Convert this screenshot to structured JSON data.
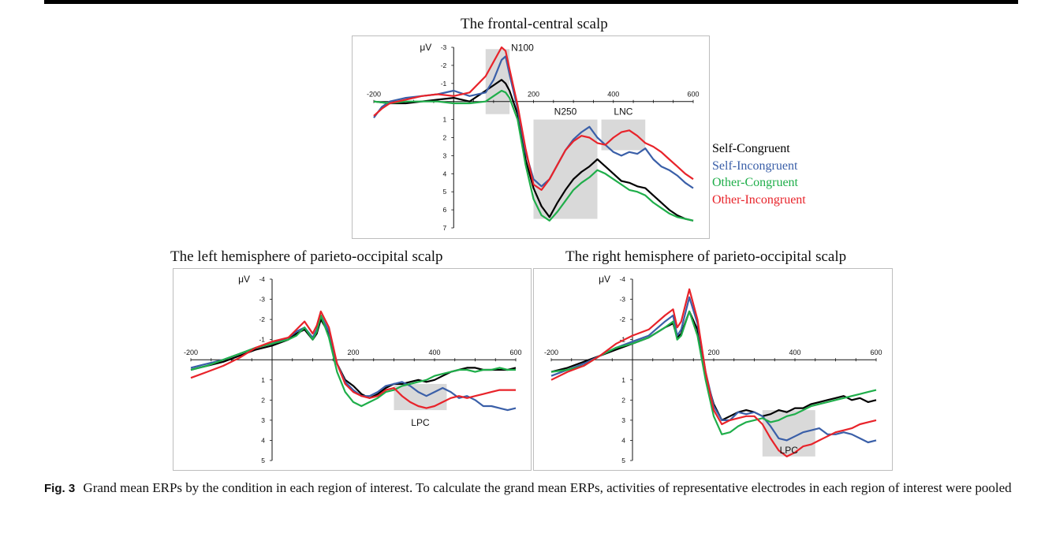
{
  "figure_label": "Fig. 3",
  "caption": "Grand mean ERPs by the condition in each region of interest. To calculate the grand mean ERPs, activities of representative electrodes in each region of interest were pooled",
  "legend": [
    {
      "label": "Self-Congruent",
      "color": "#000000"
    },
    {
      "label": "Self-Incongruent",
      "color": "#3a5fa8"
    },
    {
      "label": "Other-Congruent",
      "color": "#1fae4a"
    },
    {
      "label": "Other-Incongruent",
      "color": "#e8232a"
    }
  ],
  "chart_data": [
    {
      "type": "line",
      "title": "The frontal-central scalp",
      "ylabel": "μV",
      "xlabel": "",
      "x_range": [
        -200,
        600
      ],
      "ylim": [
        -3,
        7
      ],
      "y_inverted": true,
      "x_ticks": [
        -200,
        200,
        400,
        600
      ],
      "y_ticks": [
        -3,
        -2,
        -1,
        1,
        2,
        3,
        4,
        5,
        6,
        7
      ],
      "windows": [
        {
          "label": "N100",
          "x0": 80,
          "x1": 140,
          "y_top": -2.9,
          "y_bottom": 0.7
        },
        {
          "label": "N250",
          "x0": 200,
          "x1": 360,
          "y_top": 1.0,
          "y_bottom": 6.5
        },
        {
          "label": "LNC",
          "x0": 370,
          "x1": 480,
          "y_top": 1.0,
          "y_bottom": 2.7
        }
      ],
      "series": [
        {
          "name": "Self-Congruent",
          "color": "#000000",
          "x": [
            -200,
            -160,
            -120,
            -80,
            -40,
            0,
            40,
            80,
            100,
            120,
            130,
            140,
            160,
            180,
            200,
            220,
            240,
            260,
            280,
            300,
            320,
            340,
            360,
            380,
            400,
            420,
            440,
            460,
            480,
            500,
            520,
            540,
            560,
            580,
            600
          ],
          "y": [
            0.0,
            0.1,
            0.1,
            0.0,
            -0.1,
            -0.2,
            0.0,
            -0.6,
            -0.9,
            -1.2,
            -1.0,
            -0.6,
            0.7,
            3.2,
            4.8,
            5.8,
            6.4,
            5.6,
            4.9,
            4.3,
            3.9,
            3.6,
            3.2,
            3.6,
            4.0,
            4.4,
            4.5,
            4.7,
            4.8,
            5.2,
            5.6,
            6.0,
            6.3,
            6.5,
            6.6
          ]
        },
        {
          "name": "Self-Incongruent",
          "color": "#3a5fa8",
          "x": [
            -200,
            -180,
            -160,
            -120,
            -80,
            -40,
            0,
            40,
            80,
            100,
            120,
            130,
            140,
            160,
            180,
            200,
            220,
            240,
            260,
            280,
            300,
            320,
            340,
            360,
            380,
            400,
            420,
            440,
            460,
            480,
            500,
            520,
            540,
            560,
            580,
            600
          ],
          "y": [
            0.9,
            0.3,
            0.0,
            -0.2,
            -0.3,
            -0.4,
            -0.6,
            -0.3,
            -0.5,
            -1.2,
            -2.3,
            -2.5,
            -1.5,
            0.4,
            2.8,
            4.3,
            4.7,
            4.3,
            3.5,
            2.7,
            2.1,
            1.7,
            1.4,
            2.0,
            2.4,
            2.8,
            3.0,
            2.8,
            2.9,
            2.6,
            3.2,
            3.6,
            3.8,
            4.1,
            4.5,
            4.8
          ]
        },
        {
          "name": "Other-Congruent",
          "color": "#1fae4a",
          "x": [
            -200,
            -160,
            -120,
            -80,
            -40,
            0,
            40,
            80,
            100,
            120,
            130,
            140,
            160,
            180,
            200,
            220,
            240,
            260,
            280,
            300,
            320,
            340,
            360,
            380,
            400,
            420,
            440,
            460,
            480,
            500,
            520,
            540,
            560,
            580,
            600
          ],
          "y": [
            0.0,
            0.1,
            0.0,
            0.0,
            0.0,
            0.1,
            0.1,
            0.0,
            -0.3,
            -0.6,
            -0.5,
            -0.2,
            1.0,
            3.5,
            5.4,
            6.3,
            6.6,
            6.1,
            5.5,
            4.9,
            4.5,
            4.2,
            3.8,
            4.0,
            4.3,
            4.6,
            4.9,
            5.0,
            5.2,
            5.6,
            5.9,
            6.2,
            6.4,
            6.5,
            6.6
          ]
        },
        {
          "name": "Other-Incongruent",
          "color": "#e8232a",
          "x": [
            -200,
            -180,
            -160,
            -120,
            -80,
            -40,
            0,
            40,
            80,
            100,
            120,
            130,
            140,
            160,
            180,
            200,
            220,
            240,
            260,
            280,
            300,
            320,
            340,
            360,
            380,
            400,
            420,
            440,
            460,
            480,
            500,
            520,
            540,
            560,
            580,
            600
          ],
          "y": [
            0.8,
            0.4,
            0.1,
            -0.1,
            -0.3,
            -0.4,
            -0.3,
            -0.5,
            -1.4,
            -2.2,
            -3.0,
            -2.8,
            -1.8,
            0.2,
            2.6,
            4.6,
            4.9,
            4.3,
            3.5,
            2.7,
            2.2,
            1.9,
            2.0,
            2.3,
            2.4,
            2.0,
            1.7,
            1.6,
            1.9,
            2.3,
            2.5,
            2.8,
            3.2,
            3.6,
            4.0,
            4.3
          ]
        }
      ]
    },
    {
      "type": "line",
      "title": "The left hemisphere of parieto-occipital scalp",
      "ylabel": "μV",
      "xlabel": "",
      "x_range": [
        -200,
        600
      ],
      "ylim": [
        -4,
        5
      ],
      "y_inverted": true,
      "x_ticks": [
        -200,
        200,
        400,
        600
      ],
      "y_ticks": [
        -4,
        -3,
        -2,
        -1,
        1,
        2,
        3,
        4,
        5
      ],
      "windows": [
        {
          "label": "LPC",
          "x0": 300,
          "x1": 430,
          "y_top": 1.2,
          "y_bottom": 2.5
        }
      ],
      "series": [
        {
          "name": "Self-Congruent",
          "color": "#000000",
          "x": [
            -200,
            -160,
            -120,
            -80,
            -40,
            0,
            40,
            60,
            80,
            100,
            110,
            120,
            140,
            160,
            180,
            200,
            220,
            240,
            260,
            280,
            300,
            320,
            340,
            360,
            380,
            400,
            420,
            440,
            460,
            480,
            500,
            520,
            540,
            560,
            580,
            600
          ],
          "y": [
            0.5,
            0.3,
            0.1,
            -0.2,
            -0.5,
            -0.7,
            -1.0,
            -1.3,
            -1.5,
            -1.0,
            -1.3,
            -2.0,
            -1.3,
            0.2,
            1.0,
            1.3,
            1.7,
            1.9,
            1.7,
            1.4,
            1.2,
            1.2,
            1.1,
            1.0,
            1.1,
            1.0,
            0.8,
            0.6,
            0.5,
            0.4,
            0.4,
            0.5,
            0.5,
            0.5,
            0.5,
            0.4
          ]
        },
        {
          "name": "Self-Incongruent",
          "color": "#3a5fa8",
          "x": [
            -200,
            -160,
            -120,
            -80,
            -40,
            0,
            40,
            60,
            80,
            100,
            110,
            120,
            140,
            160,
            180,
            200,
            220,
            240,
            260,
            280,
            300,
            320,
            340,
            360,
            380,
            400,
            420,
            440,
            460,
            480,
            500,
            520,
            540,
            560,
            580,
            600
          ],
          "y": [
            0.4,
            0.2,
            0.0,
            -0.3,
            -0.6,
            -0.8,
            -1.1,
            -1.4,
            -1.6,
            -1.1,
            -1.5,
            -2.2,
            -1.4,
            0.2,
            1.1,
            1.5,
            1.8,
            1.8,
            1.6,
            1.3,
            1.2,
            1.1,
            1.3,
            1.6,
            1.8,
            1.6,
            1.4,
            1.6,
            1.9,
            1.8,
            2.0,
            2.3,
            2.3,
            2.4,
            2.5,
            2.4
          ]
        },
        {
          "name": "Other-Congruent",
          "color": "#1fae4a",
          "x": [
            -200,
            -160,
            -120,
            -80,
            -40,
            0,
            40,
            60,
            80,
            100,
            110,
            120,
            140,
            160,
            180,
            200,
            220,
            240,
            260,
            280,
            300,
            320,
            340,
            360,
            380,
            400,
            420,
            440,
            460,
            480,
            500,
            520,
            540,
            560,
            580,
            600
          ],
          "y": [
            0.5,
            0.3,
            0.0,
            -0.3,
            -0.6,
            -0.8,
            -1.0,
            -1.2,
            -1.6,
            -1.0,
            -1.4,
            -2.2,
            -1.1,
            0.6,
            1.6,
            2.1,
            2.3,
            2.1,
            1.9,
            1.6,
            1.5,
            1.3,
            1.2,
            1.1,
            1.0,
            0.8,
            0.7,
            0.6,
            0.5,
            0.5,
            0.6,
            0.5,
            0.5,
            0.4,
            0.5,
            0.5
          ]
        },
        {
          "name": "Other-Incongruent",
          "color": "#e8232a",
          "x": [
            -200,
            -160,
            -120,
            -80,
            -40,
            0,
            40,
            60,
            80,
            100,
            110,
            120,
            140,
            160,
            180,
            200,
            220,
            240,
            260,
            280,
            300,
            320,
            340,
            360,
            380,
            400,
            420,
            440,
            460,
            480,
            500,
            520,
            540,
            560,
            580,
            600
          ],
          "y": [
            0.9,
            0.6,
            0.3,
            -0.1,
            -0.6,
            -0.9,
            -1.1,
            -1.5,
            -1.9,
            -1.3,
            -1.7,
            -2.4,
            -1.6,
            0.2,
            1.2,
            1.6,
            1.8,
            1.9,
            1.8,
            1.5,
            1.4,
            1.8,
            2.1,
            2.3,
            2.4,
            2.3,
            2.1,
            1.9,
            1.8,
            1.9,
            1.8,
            1.7,
            1.6,
            1.5,
            1.5,
            1.5
          ]
        }
      ]
    },
    {
      "type": "line",
      "title": "The right hemisphere of parieto-occipital scalp",
      "ylabel": "μV",
      "xlabel": "",
      "x_range": [
        -200,
        600
      ],
      "ylim": [
        -4,
        5
      ],
      "y_inverted": true,
      "x_ticks": [
        -200,
        200,
        400,
        600
      ],
      "y_ticks": [
        -4,
        -3,
        -2,
        -1,
        1,
        2,
        3,
        4,
        5
      ],
      "windows": [
        {
          "label": "LPC",
          "x0": 320,
          "x1": 450,
          "y_top": 2.5,
          "y_bottom": 4.8
        }
      ],
      "series": [
        {
          "name": "Self-Congruent",
          "color": "#000000",
          "x": [
            -200,
            -160,
            -120,
            -80,
            -40,
            0,
            40,
            80,
            100,
            110,
            120,
            140,
            160,
            180,
            200,
            220,
            240,
            260,
            280,
            300,
            320,
            340,
            360,
            380,
            400,
            420,
            440,
            460,
            480,
            500,
            520,
            540,
            560,
            580,
            600
          ],
          "y": [
            0.6,
            0.4,
            0.1,
            -0.2,
            -0.5,
            -0.8,
            -1.1,
            -1.6,
            -1.8,
            -1.1,
            -1.3,
            -2.4,
            -1.5,
            0.8,
            2.2,
            3.0,
            2.8,
            2.6,
            2.5,
            2.6,
            2.8,
            2.7,
            2.5,
            2.6,
            2.4,
            2.4,
            2.2,
            2.1,
            2.0,
            1.9,
            1.8,
            2.0,
            1.9,
            2.1,
            2.0
          ]
        },
        {
          "name": "Self-Incongruent",
          "color": "#3a5fa8",
          "x": [
            -200,
            -160,
            -120,
            -80,
            -40,
            0,
            40,
            80,
            100,
            110,
            120,
            140,
            160,
            180,
            200,
            220,
            240,
            260,
            280,
            300,
            320,
            340,
            360,
            380,
            400,
            420,
            440,
            460,
            480,
            500,
            520,
            540,
            560,
            580,
            600
          ],
          "y": [
            0.8,
            0.5,
            0.2,
            -0.2,
            -0.6,
            -0.9,
            -1.2,
            -1.9,
            -2.2,
            -1.2,
            -1.5,
            -3.1,
            -1.8,
            0.6,
            2.3,
            3.0,
            3.0,
            2.6,
            2.7,
            2.6,
            2.8,
            3.3,
            3.9,
            4.0,
            3.8,
            3.6,
            3.5,
            3.4,
            3.7,
            3.7,
            3.6,
            3.7,
            3.9,
            4.1,
            4.0
          ]
        },
        {
          "name": "Other-Congruent",
          "color": "#1fae4a",
          "x": [
            -200,
            -160,
            -120,
            -80,
            -40,
            0,
            40,
            80,
            100,
            110,
            120,
            140,
            160,
            180,
            200,
            220,
            240,
            260,
            280,
            300,
            320,
            340,
            360,
            380,
            400,
            420,
            440,
            460,
            480,
            500,
            520,
            540,
            560,
            580,
            600
          ],
          "y": [
            0.6,
            0.5,
            0.3,
            -0.2,
            -0.6,
            -0.8,
            -1.1,
            -1.6,
            -1.9,
            -1.0,
            -1.2,
            -2.4,
            -1.2,
            1.0,
            2.8,
            3.7,
            3.6,
            3.3,
            3.1,
            3.0,
            2.9,
            3.1,
            3.0,
            2.8,
            2.7,
            2.5,
            2.3,
            2.2,
            2.1,
            2.0,
            1.9,
            1.8,
            1.7,
            1.6,
            1.5
          ]
        },
        {
          "name": "Other-Incongruent",
          "color": "#e8232a",
          "x": [
            -200,
            -160,
            -120,
            -80,
            -40,
            0,
            40,
            80,
            100,
            110,
            120,
            140,
            160,
            180,
            200,
            220,
            240,
            260,
            280,
            300,
            320,
            340,
            360,
            380,
            400,
            420,
            440,
            460,
            480,
            500,
            520,
            540,
            560,
            580,
            600
          ],
          "y": [
            1.0,
            0.6,
            0.3,
            -0.2,
            -0.8,
            -1.2,
            -1.5,
            -2.2,
            -2.5,
            -1.6,
            -1.9,
            -3.5,
            -2.0,
            0.6,
            2.5,
            3.2,
            3.0,
            2.9,
            2.8,
            2.8,
            3.2,
            3.9,
            4.5,
            4.8,
            4.6,
            4.3,
            4.2,
            4.0,
            3.8,
            3.6,
            3.5,
            3.4,
            3.2,
            3.1,
            3.0
          ]
        }
      ]
    }
  ]
}
